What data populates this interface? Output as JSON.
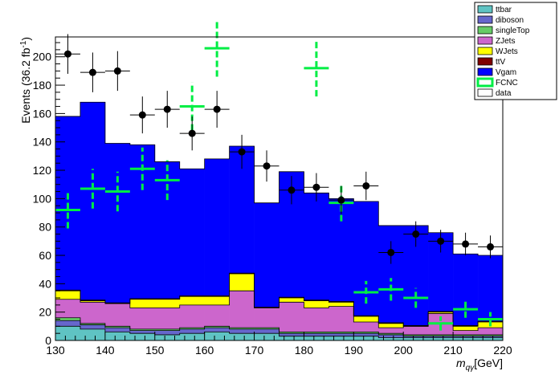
{
  "chart_data": {
    "type": "bar",
    "title": "",
    "xlabel": "m_{qγ}[GeV]",
    "ylabel": "Events (36.2 fb^{-1})",
    "xlim": [
      130,
      220
    ],
    "ylim": [
      0,
      214
    ],
    "x_ticks": [
      130,
      140,
      150,
      160,
      170,
      180,
      190,
      200,
      210,
      220
    ],
    "y_ticks": [
      0,
      20,
      40,
      60,
      80,
      100,
      120,
      140,
      160,
      180,
      200
    ],
    "bin_edges": [
      130,
      135,
      140,
      145,
      150,
      155,
      160,
      165,
      170,
      175,
      180,
      185,
      190,
      195,
      200,
      205,
      210,
      215,
      220
    ],
    "stacked": true,
    "stack_order": [
      "ttbar",
      "diboson",
      "singleTop",
      "ZJets",
      "WJets",
      "ttV",
      "Vgam"
    ],
    "series": [
      {
        "name": "ttbar",
        "color": "#5fc3c3",
        "values": [
          10,
          8,
          6,
          5,
          4,
          5,
          6,
          5,
          5,
          3,
          3,
          3,
          3,
          2,
          2,
          2,
          2,
          2
        ]
      },
      {
        "name": "diboson",
        "color": "#6666cc",
        "values": [
          4,
          3,
          3,
          2,
          3,
          3,
          3,
          3,
          3,
          2,
          2,
          2,
          2,
          2,
          1,
          1,
          1,
          1
        ]
      },
      {
        "name": "singleTop",
        "color": "#66cc66",
        "values": [
          2,
          1,
          1,
          1,
          1,
          1,
          1,
          1,
          1,
          1,
          1,
          1,
          1,
          1,
          1,
          1,
          1,
          1
        ]
      },
      {
        "name": "ZJets",
        "color": "#cc66cc",
        "values": [
          13,
          15,
          16,
          15,
          15,
          16,
          15,
          26,
          14,
          21,
          17,
          18,
          7,
          4,
          6,
          15,
          3,
          5
        ]
      },
      {
        "name": "WJets",
        "color": "#ffff00",
        "values": [
          6,
          1,
          0,
          6,
          6,
          6,
          6,
          12,
          0,
          3,
          5,
          3,
          4,
          3,
          0,
          1,
          3,
          4
        ]
      },
      {
        "name": "ttV",
        "color": "#7f0000",
        "values": [
          0.5,
          0.5,
          0.5,
          0.5,
          0.5,
          0.5,
          0.5,
          0.5,
          0.5,
          0.5,
          0.5,
          0.5,
          0.5,
          0.5,
          0.5,
          0.5,
          0.5,
          0.5
        ]
      },
      {
        "name": "Vgam",
        "color": "#0000ff",
        "values": [
          122.5,
          139.5,
          112.5,
          108.5,
          96.5,
          89.5,
          96.5,
          89.5,
          73.5,
          88.5,
          75.5,
          72.5,
          80.5,
          68.5,
          70.5,
          55.5,
          50.5,
          46.5
        ]
      }
    ],
    "signal": {
      "name": "FCNC",
      "color": "#00ee44",
      "x": [
        132.5,
        137.5,
        142.5,
        147.5,
        152.5,
        157.5,
        162.5,
        167.5,
        172.5,
        177.5,
        182.5,
        187.5,
        192.5,
        197.5,
        202.5,
        207.5,
        212.5,
        217.5
      ],
      "values": [
        92,
        107,
        105,
        121,
        113,
        165,
        206,
        null,
        null,
        null,
        192,
        97,
        34,
        36,
        30,
        12,
        22,
        15
      ],
      "errors": [
        13,
        14,
        14,
        15,
        14,
        17,
        20,
        null,
        null,
        null,
        20,
        13,
        8,
        8,
        7,
        5,
        6,
        5
      ]
    },
    "data": {
      "name": "data",
      "x": [
        132.5,
        137.5,
        142.5,
        147.5,
        152.5,
        157.5,
        162.5,
        167.5,
        172.5,
        177.5,
        182.5,
        187.5,
        192.5,
        197.5,
        202.5,
        207.5,
        212.5,
        217.5
      ],
      "values": [
        202,
        189,
        190,
        159,
        163,
        146,
        163,
        133,
        123,
        106,
        108,
        99,
        109,
        62,
        75,
        70,
        68,
        66
      ],
      "errors": [
        14,
        14,
        14,
        13,
        13,
        12,
        13,
        12,
        11,
        10,
        10,
        10,
        10,
        8,
        9,
        8,
        8,
        8
      ]
    },
    "legend": {
      "placement": "top-right",
      "entries": [
        {
          "label": "ttbar",
          "style": "fill",
          "color": "#5fc3c3"
        },
        {
          "label": "diboson",
          "style": "fill",
          "color": "#6666cc"
        },
        {
          "label": "singleTop",
          "style": "fill",
          "color": "#66cc66"
        },
        {
          "label": "ZJets",
          "style": "fill",
          "color": "#cc66cc"
        },
        {
          "label": "WJets",
          "style": "fill",
          "color": "#ffff00"
        },
        {
          "label": "ttV",
          "style": "fill",
          "color": "#7f0000"
        },
        {
          "label": "Vgam",
          "style": "fill",
          "color": "#0000ff"
        },
        {
          "label": "FCNC",
          "style": "outline",
          "color": "#00ee44"
        },
        {
          "label": "data",
          "style": "empty",
          "color": "#ffffff"
        }
      ]
    },
    "grid": false
  }
}
